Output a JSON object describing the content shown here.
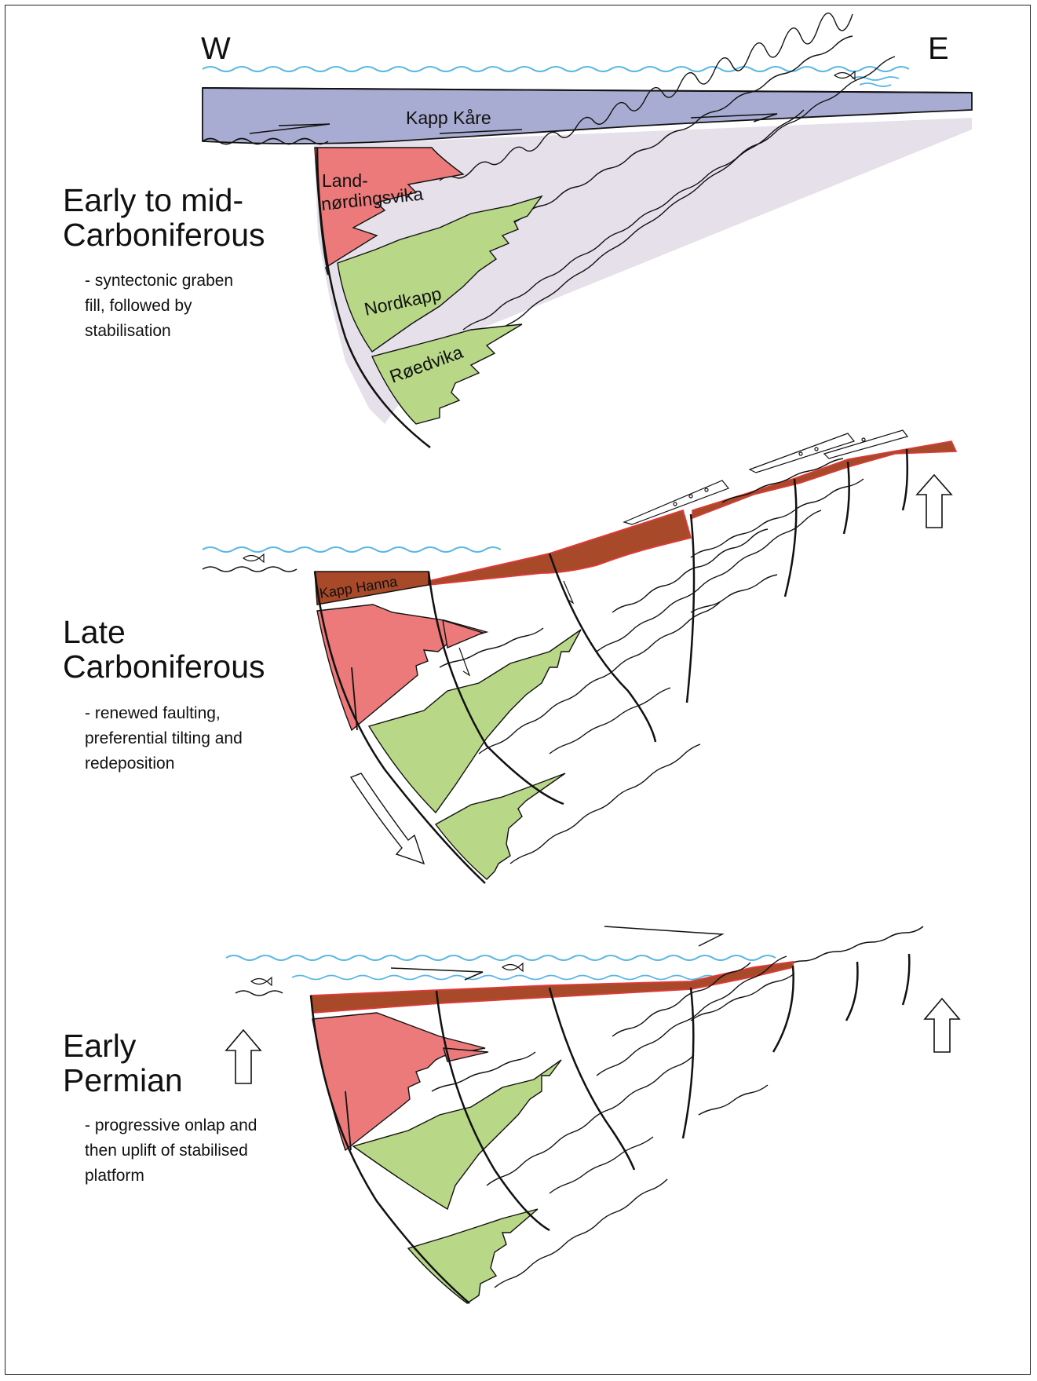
{
  "directions": {
    "west": "W",
    "east": "E"
  },
  "panels": [
    {
      "title_line1": "Early to mid-",
      "title_line2": "Carboniferous",
      "desc_line1": "- syntectonic graben",
      "desc_line2": "fill, followed by",
      "desc_line3": "stabilisation"
    },
    {
      "title_line1": "Late",
      "title_line2": "Carboniferous",
      "desc_line1": "- renewed faulting,",
      "desc_line2": "preferential tilting and",
      "desc_line3": "redeposition"
    },
    {
      "title_line1": "Early",
      "title_line2": "Permian",
      "desc_line1": "- progressive onlap and",
      "desc_line2": "then  uplift of stabilised",
      "desc_line3": "platform"
    }
  ],
  "units": {
    "kapp_kare": "Kapp Kåre",
    "landnordingsvika_1": "Land-",
    "landnordingsvika_2": "nørdingsvika",
    "nordkapp": "Nordkapp",
    "roedvika": "Røedvika",
    "kapp_hanna": "Kapp Hanna"
  },
  "colors": {
    "kapp_kare": "#a9acd2",
    "shelf": "#e6e0ea",
    "red_unit": "#ec7a7a",
    "green_unit": "#b8d887",
    "brown_cover": "#a8492a",
    "sea": "#5ab7e3",
    "red_line": "#e03a3a"
  }
}
